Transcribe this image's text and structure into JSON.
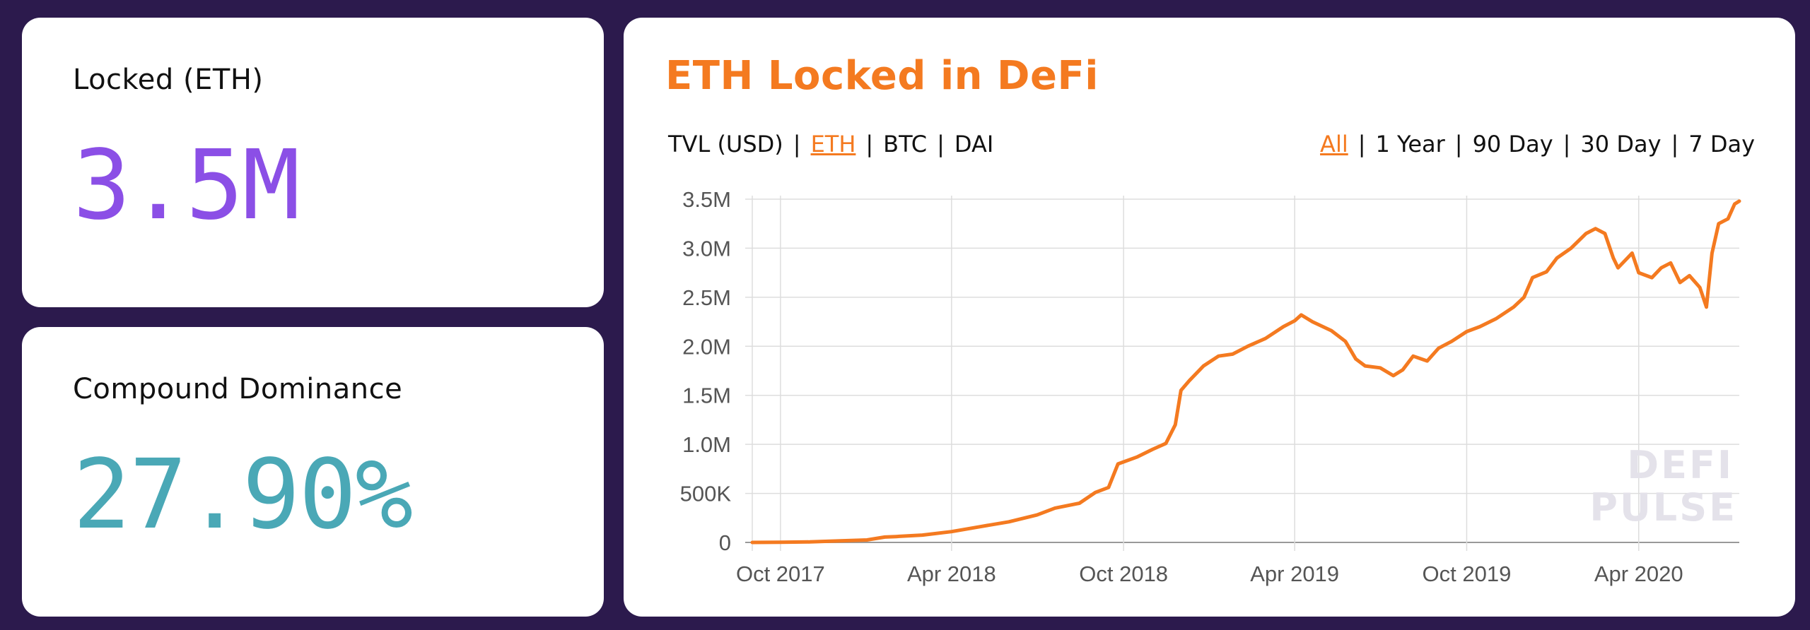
{
  "cards": {
    "locked": {
      "label": "Locked (ETH)",
      "value": "3.5M"
    },
    "dominance": {
      "label": "Compound Dominance",
      "value": "27.90%"
    }
  },
  "chart_card": {
    "title": "ETH Locked in DeFi",
    "unit_tabs": [
      {
        "label": "TVL (USD)",
        "active": false
      },
      {
        "label": "ETH",
        "active": true
      },
      {
        "label": "BTC",
        "active": false
      },
      {
        "label": "DAI",
        "active": false
      }
    ],
    "range_tabs": [
      {
        "label": "All",
        "active": true
      },
      {
        "label": "1 Year",
        "active": false
      },
      {
        "label": "90 Day",
        "active": false
      },
      {
        "label": "30 Day",
        "active": false
      },
      {
        "label": "7 Day",
        "active": false
      }
    ],
    "watermark": [
      "DEFI",
      "PULSE"
    ]
  },
  "colors": {
    "background": "#2c1a4d",
    "accent": "#f47a20",
    "locked_value": "#8b4fe6",
    "dominance_value": "#4aa8b6"
  },
  "chart_data": {
    "type": "line",
    "title": "ETH Locked in DeFi",
    "xlabel": "",
    "ylabel": "",
    "x_ticks": [
      "Oct 2017",
      "Apr 2018",
      "Oct 2018",
      "Apr 2019",
      "Oct 2019",
      "Apr 2020"
    ],
    "x_tick_dates": [
      "2017-10-01",
      "2018-04-01",
      "2018-10-01",
      "2019-04-01",
      "2019-10-01",
      "2020-04-01"
    ],
    "y_ticks": [
      {
        "value": 0,
        "label": "0"
      },
      {
        "value": 500000,
        "label": "500K"
      },
      {
        "value": 1000000,
        "label": "1.0M"
      },
      {
        "value": 1500000,
        "label": "1.5M"
      },
      {
        "value": 2000000,
        "label": "2.0M"
      },
      {
        "value": 2500000,
        "label": "2.5M"
      },
      {
        "value": 3000000,
        "label": "3.0M"
      },
      {
        "value": 3500000,
        "label": "3.5M"
      }
    ],
    "xlim": [
      "2017-09-01",
      "2020-07-17"
    ],
    "ylim": [
      0,
      3500000
    ],
    "grid": true,
    "legend": "none",
    "series": [
      {
        "color": "#f47a20",
        "points": [
          [
            "2017-09-01",
            0
          ],
          [
            "2017-10-01",
            2000
          ],
          [
            "2017-11-01",
            5000
          ],
          [
            "2017-12-01",
            15000
          ],
          [
            "2018-01-01",
            25000
          ],
          [
            "2018-01-20",
            55000
          ],
          [
            "2018-02-01",
            60000
          ],
          [
            "2018-03-01",
            75000
          ],
          [
            "2018-04-01",
            110000
          ],
          [
            "2018-05-01",
            160000
          ],
          [
            "2018-06-01",
            210000
          ],
          [
            "2018-07-01",
            280000
          ],
          [
            "2018-07-20",
            350000
          ],
          [
            "2018-08-15",
            400000
          ],
          [
            "2018-09-01",
            510000
          ],
          [
            "2018-09-15",
            560000
          ],
          [
            "2018-09-25",
            800000
          ],
          [
            "2018-10-15",
            870000
          ],
          [
            "2018-11-01",
            950000
          ],
          [
            "2018-11-15",
            1010000
          ],
          [
            "2018-11-25",
            1200000
          ],
          [
            "2018-12-01",
            1550000
          ],
          [
            "2018-12-10",
            1650000
          ],
          [
            "2018-12-25",
            1800000
          ],
          [
            "2019-01-10",
            1900000
          ],
          [
            "2019-01-25",
            1920000
          ],
          [
            "2019-02-10",
            2000000
          ],
          [
            "2019-03-01",
            2080000
          ],
          [
            "2019-03-20",
            2200000
          ],
          [
            "2019-04-01",
            2260000
          ],
          [
            "2019-04-08",
            2320000
          ],
          [
            "2019-04-20",
            2250000
          ],
          [
            "2019-05-10",
            2160000
          ],
          [
            "2019-05-25",
            2050000
          ],
          [
            "2019-06-05",
            1870000
          ],
          [
            "2019-06-15",
            1800000
          ],
          [
            "2019-07-01",
            1780000
          ],
          [
            "2019-07-15",
            1700000
          ],
          [
            "2019-07-25",
            1760000
          ],
          [
            "2019-08-05",
            1900000
          ],
          [
            "2019-08-20",
            1850000
          ],
          [
            "2019-09-01",
            1980000
          ],
          [
            "2019-09-15",
            2050000
          ],
          [
            "2019-10-01",
            2150000
          ],
          [
            "2019-10-15",
            2200000
          ],
          [
            "2019-11-01",
            2280000
          ],
          [
            "2019-11-20",
            2400000
          ],
          [
            "2019-12-01",
            2500000
          ],
          [
            "2019-12-10",
            2700000
          ],
          [
            "2019-12-25",
            2760000
          ],
          [
            "2020-01-05",
            2900000
          ],
          [
            "2020-01-20",
            3000000
          ],
          [
            "2020-02-05",
            3150000
          ],
          [
            "2020-02-15",
            3200000
          ],
          [
            "2020-02-25",
            3150000
          ],
          [
            "2020-03-05",
            2900000
          ],
          [
            "2020-03-10",
            2800000
          ],
          [
            "2020-03-20",
            2900000
          ],
          [
            "2020-03-25",
            2950000
          ],
          [
            "2020-04-01",
            2750000
          ],
          [
            "2020-04-15",
            2700000
          ],
          [
            "2020-04-25",
            2800000
          ],
          [
            "2020-05-05",
            2850000
          ],
          [
            "2020-05-15",
            2650000
          ],
          [
            "2020-05-25",
            2720000
          ],
          [
            "2020-06-05",
            2600000
          ],
          [
            "2020-06-12",
            2400000
          ],
          [
            "2020-06-18",
            2950000
          ],
          [
            "2020-06-25",
            3250000
          ],
          [
            "2020-07-05",
            3300000
          ],
          [
            "2020-07-12",
            3450000
          ],
          [
            "2020-07-17",
            3480000
          ]
        ]
      }
    ]
  }
}
